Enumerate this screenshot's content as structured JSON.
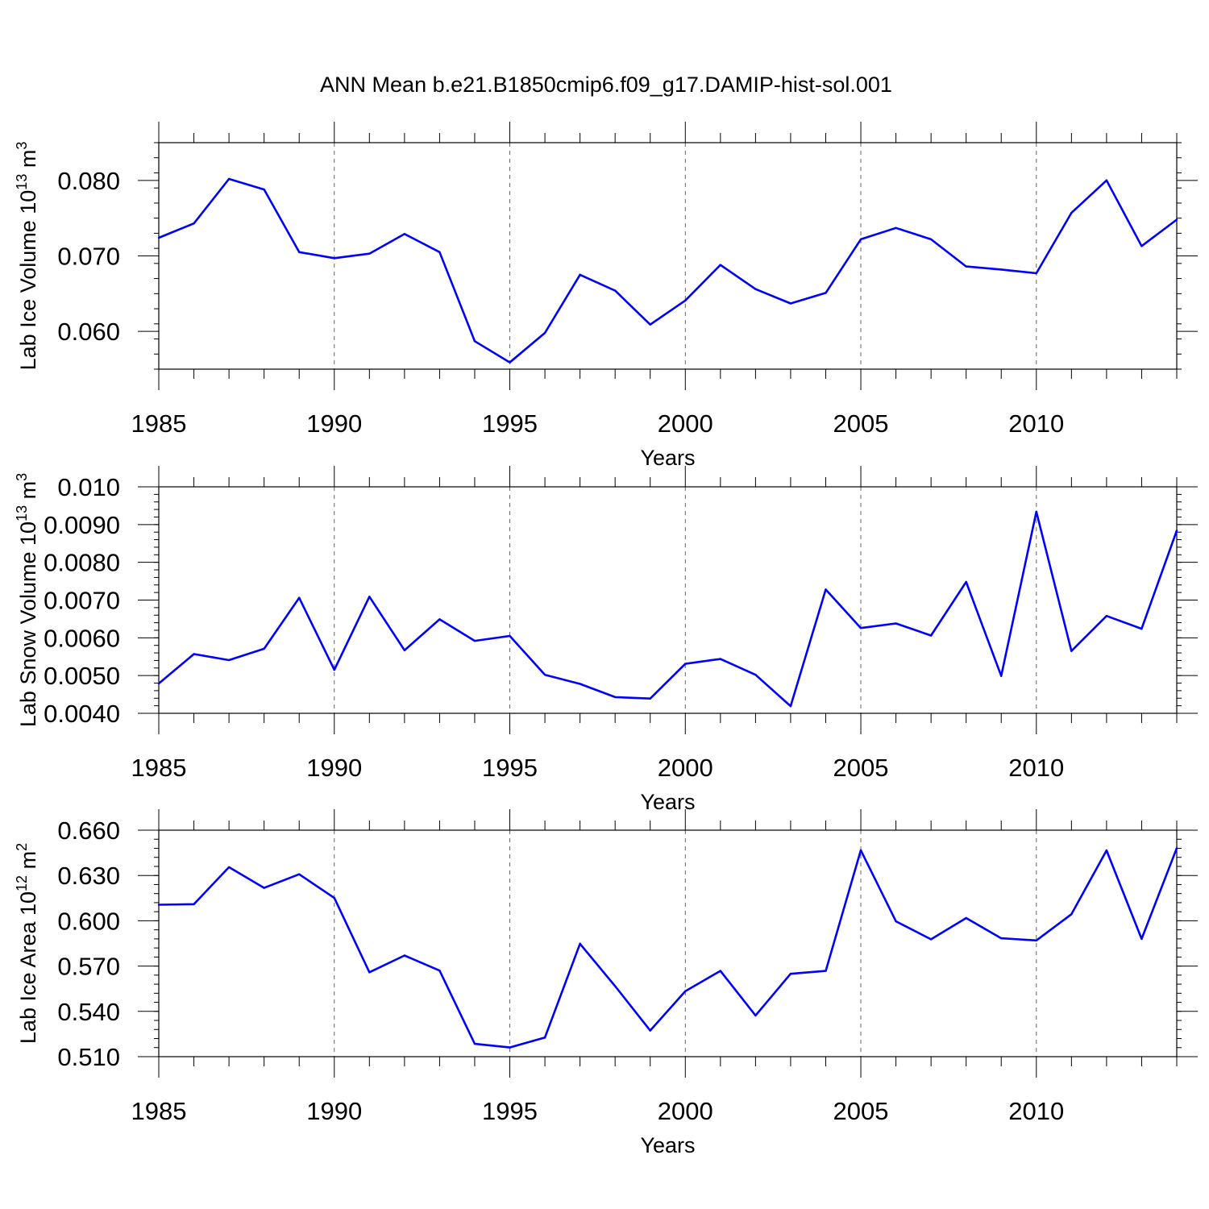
{
  "title": "ANN Mean b.e21.B1850cmip6.f09_g17.DAMIP-hist-sol.001",
  "line_color": "#0000ff",
  "chart_data": [
    {
      "type": "line",
      "ylabel": "Lab Ice Volume 10",
      "ylabel_exp": "13",
      "ylabel_unit": " m",
      "ylabel_unit_exp": "3",
      "xlabel": "Years",
      "xlim": [
        1985,
        2014
      ],
      "ylim": [
        0.055,
        0.085
      ],
      "x_ticks": [
        1985,
        1990,
        1995,
        2000,
        2005,
        2010
      ],
      "x_tick_labels": [
        "1985",
        "1990",
        "1995",
        "2000",
        "2005",
        "2010"
      ],
      "y_ticks": [
        0.06,
        0.07,
        0.08
      ],
      "y_tick_labels": [
        "0.060",
        "0.070",
        "0.080"
      ],
      "y_minor_step": 0.002,
      "grid": "dashed vertical lines at major x ticks",
      "x": [
        1985,
        1986,
        1987,
        1988,
        1989,
        1990,
        1991,
        1992,
        1993,
        1994,
        1995,
        1996,
        1997,
        1998,
        1999,
        2000,
        2001,
        2002,
        2003,
        2004,
        2005,
        2006,
        2007,
        2008,
        2009,
        2010,
        2011,
        2012,
        2013,
        2014
      ],
      "y": [
        0.0724,
        0.0743,
        0.0802,
        0.0788,
        0.0705,
        0.0697,
        0.0703,
        0.0729,
        0.0705,
        0.0587,
        0.0559,
        0.0598,
        0.0675,
        0.0654,
        0.0609,
        0.0641,
        0.0688,
        0.0656,
        0.0637,
        0.0651,
        0.0722,
        0.0737,
        0.0722,
        0.0686,
        0.0682,
        0.0677,
        0.0757,
        0.08,
        0.0713,
        0.0748
      ]
    },
    {
      "type": "line",
      "ylabel": "Lab Snow Volume 10",
      "ylabel_exp": "13",
      "ylabel_unit": " m",
      "ylabel_unit_exp": "3",
      "xlabel": "Years",
      "xlim": [
        1985,
        2014
      ],
      "ylim": [
        0.004,
        0.01
      ],
      "x_ticks": [
        1985,
        1990,
        1995,
        2000,
        2005,
        2010
      ],
      "x_tick_labels": [
        "1985",
        "1990",
        "1995",
        "2000",
        "2005",
        "2010"
      ],
      "y_ticks": [
        0.004,
        0.005,
        0.006,
        0.007,
        0.008,
        0.009,
        0.01
      ],
      "y_tick_labels": [
        "0.0040",
        "0.0050",
        "0.0060",
        "0.0070",
        "0.0080",
        "0.0090",
        "0.010"
      ],
      "y_minor_step": 0.0002,
      "grid": "dashed vertical lines at major x ticks",
      "x": [
        1985,
        1986,
        1987,
        1988,
        1989,
        1990,
        1991,
        1992,
        1993,
        1994,
        1995,
        1996,
        1997,
        1998,
        1999,
        2000,
        2001,
        2002,
        2003,
        2004,
        2005,
        2006,
        2007,
        2008,
        2009,
        2010,
        2011,
        2012,
        2013,
        2014
      ],
      "y": [
        0.00479,
        0.00557,
        0.00541,
        0.00571,
        0.00706,
        0.00515,
        0.00709,
        0.00567,
        0.00649,
        0.00592,
        0.00605,
        0.00502,
        0.00478,
        0.00443,
        0.00439,
        0.00531,
        0.00544,
        0.00502,
        0.00419,
        0.00728,
        0.00626,
        0.00638,
        0.00606,
        0.00748,
        0.00499,
        0.00934,
        0.00565,
        0.00658,
        0.00624,
        0.00884
      ]
    },
    {
      "type": "line",
      "ylabel": "Lab Ice Area 10",
      "ylabel_exp": "12",
      "ylabel_unit": " m",
      "ylabel_unit_exp": "2",
      "xlabel": "Years",
      "xlim": [
        1985,
        2014
      ],
      "ylim": [
        0.51,
        0.66
      ],
      "x_ticks": [
        1985,
        1990,
        1995,
        2000,
        2005,
        2010
      ],
      "x_tick_labels": [
        "1985",
        "1990",
        "1995",
        "2000",
        "2005",
        "2010"
      ],
      "y_ticks": [
        0.51,
        0.54,
        0.57,
        0.6,
        0.63,
        0.66
      ],
      "y_tick_labels": [
        "0.510",
        "0.540",
        "0.570",
        "0.600",
        "0.630",
        "0.660"
      ],
      "y_minor_step": 0.006,
      "grid": "dashed vertical lines at major x ticks",
      "x": [
        1985,
        1986,
        1987,
        1988,
        1989,
        1990,
        1991,
        1992,
        1993,
        1994,
        1995,
        1996,
        1997,
        1998,
        1999,
        2000,
        2001,
        2002,
        2003,
        2004,
        2005,
        2006,
        2007,
        2008,
        2009,
        2010,
        2011,
        2012,
        2013,
        2014
      ],
      "y": [
        0.6106,
        0.611,
        0.6355,
        0.6218,
        0.6308,
        0.6151,
        0.5659,
        0.577,
        0.567,
        0.5185,
        0.5161,
        0.5227,
        0.5848,
        0.5567,
        0.5273,
        0.5534,
        0.5668,
        0.5373,
        0.5649,
        0.5668,
        0.6467,
        0.5996,
        0.5877,
        0.6018,
        0.5884,
        0.587,
        0.6043,
        0.6466,
        0.588,
        0.6481
      ]
    }
  ]
}
